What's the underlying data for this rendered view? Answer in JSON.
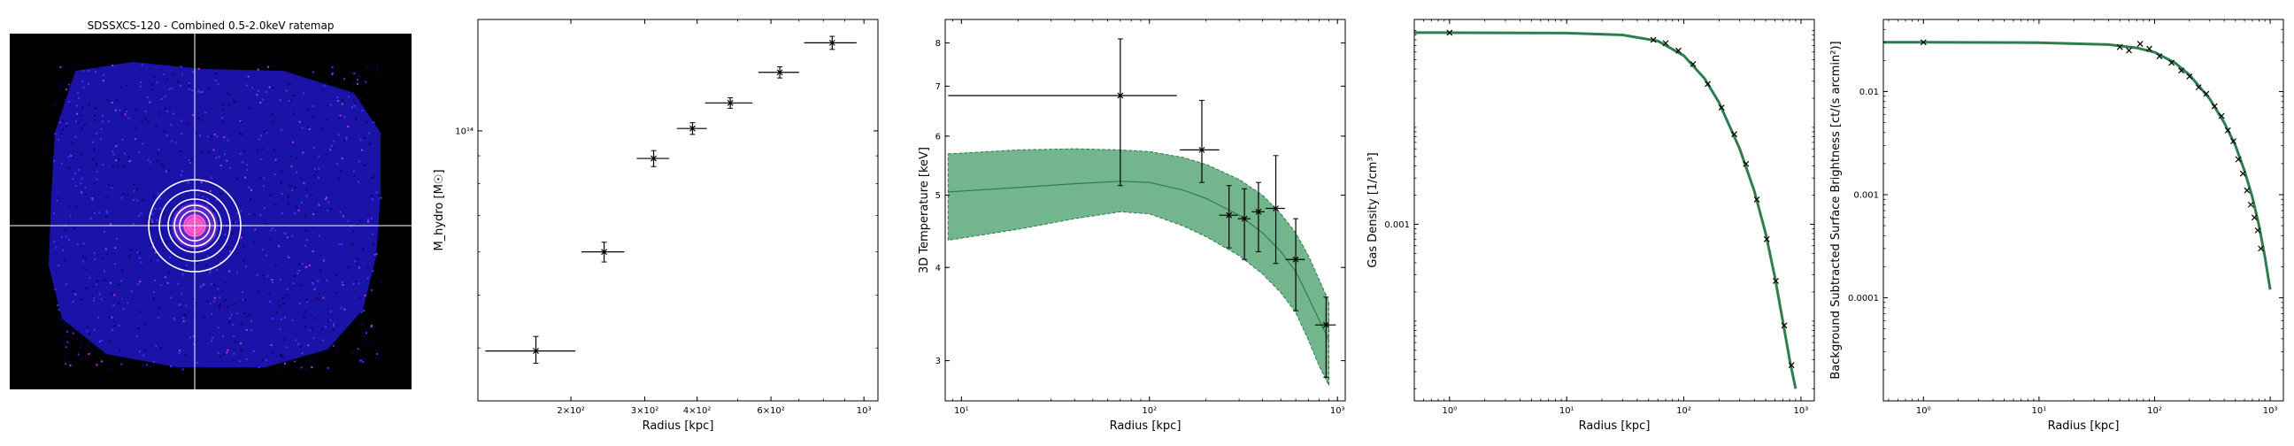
{
  "panels": {
    "image": {
      "title": "SDSSXCS-120 - Combined 0.5-2.0keV ratemap"
    }
  },
  "colors": {
    "fill": "#5aa878",
    "line": "#2e7d4f",
    "image_bg": "#000000",
    "source_blue": "#2a1fd6",
    "aperture": "#ffffff"
  },
  "chart_data": [
    {
      "type": "scatter",
      "name": "hydrostatic-mass-profile",
      "xlabel": "Radius [kpc]",
      "ylabel": "M_hydro [M☉]",
      "xscale": "log",
      "yscale": "log",
      "xlim": [
        120,
        1080
      ],
      "ylim": [
        32000000000000.0,
        160000000000000.0
      ],
      "x_ticks": [
        {
          "v": 200,
          "label": "2×10²"
        },
        {
          "v": 300,
          "label": "3×10²"
        },
        {
          "v": 400,
          "label": "4×10²"
        },
        {
          "v": 600,
          "label": "6×10²"
        },
        {
          "v": 1000,
          "label": "10³"
        }
      ],
      "y_ticks": [
        {
          "v": 100000000000000.0,
          "label": "10¹⁴"
        }
      ],
      "points": [
        {
          "x": 165,
          "y": 39500000000000.0,
          "xerr": [
            40,
            40
          ],
          "yerr": [
            2000000000000.0,
            2500000000000.0
          ]
        },
        {
          "x": 240,
          "y": 60000000000000.0,
          "xerr": [
            28,
            28
          ],
          "yerr": [
            2500000000000.0,
            2500000000000.0
          ]
        },
        {
          "x": 315,
          "y": 89000000000000.0,
          "xerr": [
            28,
            28
          ],
          "yerr": [
            3000000000000.0,
            3000000000000.0
          ]
        },
        {
          "x": 390,
          "y": 101000000000000.0,
          "xerr": [
            32,
            32
          ],
          "yerr": [
            2500000000000.0,
            2500000000000.0
          ]
        },
        {
          "x": 480,
          "y": 112500000000000.0,
          "xerr": [
            62,
            62
          ],
          "yerr": [
            2500000000000.0,
            2500000000000.0
          ]
        },
        {
          "x": 630,
          "y": 128000000000000.0,
          "xerr": [
            70,
            70
          ],
          "yerr": [
            3000000000000.0,
            3000000000000.0
          ]
        },
        {
          "x": 840,
          "y": 145000000000000.0,
          "xerr": [
            120,
            120
          ],
          "yerr": [
            4000000000000.0,
            4000000000000.0
          ]
        }
      ]
    },
    {
      "type": "scatter",
      "name": "3d-temperature-profile",
      "xlabel": "Radius [kpc]",
      "ylabel": "3D Temperature [keV]",
      "xscale": "log",
      "yscale": "log",
      "xlim": [
        8.2,
        1100
      ],
      "ylim": [
        2.65,
        8.6
      ],
      "x_ticks": [
        {
          "v": 10,
          "label": "10¹"
        },
        {
          "v": 100,
          "label": "10²"
        },
        {
          "v": 1000,
          "label": "10³"
        }
      ],
      "y_ticks": [
        {
          "v": 3,
          "label": "3"
        },
        {
          "v": 4,
          "label": "4"
        },
        {
          "v": 5,
          "label": "5"
        },
        {
          "v": 6,
          "label": "6"
        },
        {
          "v": 7,
          "label": "7"
        },
        {
          "v": 8,
          "label": "8"
        }
      ],
      "model": {
        "x": [
          8.5,
          20,
          40,
          70,
          100,
          150,
          200,
          300,
          400,
          500,
          600,
          700,
          800,
          900
        ],
        "y": [
          5.05,
          5.12,
          5.18,
          5.22,
          5.2,
          5.08,
          4.95,
          4.7,
          4.45,
          4.2,
          3.95,
          3.65,
          3.4,
          3.2
        ],
        "upper": [
          5.68,
          5.75,
          5.77,
          5.75,
          5.72,
          5.62,
          5.5,
          5.25,
          5.0,
          4.72,
          4.45,
          4.15,
          3.85,
          3.6
        ],
        "lower": [
          4.35,
          4.5,
          4.65,
          4.75,
          4.72,
          4.55,
          4.4,
          4.15,
          3.92,
          3.7,
          3.48,
          3.2,
          2.95,
          2.78
        ]
      },
      "points": [
        {
          "x": 70,
          "y": 6.8,
          "xerr": [
            61.5,
            70
          ],
          "yerr": [
            1.65,
            1.3
          ]
        },
        {
          "x": 190,
          "y": 5.75,
          "xerr": [
            45,
            45
          ],
          "yerr": [
            0.55,
            0.95
          ]
        },
        {
          "x": 265,
          "y": 4.7,
          "xerr": [
            30,
            30
          ],
          "yerr": [
            0.45,
            0.45
          ]
        },
        {
          "x": 320,
          "y": 4.65,
          "xerr": [
            25,
            25
          ],
          "yerr": [
            0.55,
            0.45
          ]
        },
        {
          "x": 380,
          "y": 4.75,
          "xerr": [
            30,
            30
          ],
          "yerr": [
            0.55,
            0.45
          ]
        },
        {
          "x": 470,
          "y": 4.8,
          "xerr": [
            55,
            55
          ],
          "yerr": [
            0.75,
            0.85
          ]
        },
        {
          "x": 600,
          "y": 4.1,
          "xerr": [
            70,
            70
          ],
          "yerr": [
            0.6,
            0.55
          ]
        },
        {
          "x": 870,
          "y": 3.35,
          "xerr": [
            110,
            110
          ],
          "yerr": [
            0.5,
            0.3
          ]
        }
      ]
    },
    {
      "type": "line",
      "name": "gas-density-profile",
      "xlabel": "Radius [kpc]",
      "ylabel": "Gas Density [1/cm³]",
      "xscale": "log",
      "yscale": "log",
      "xlim": [
        0.5,
        1300
      ],
      "ylim": [
        1.5e-05,
        0.13
      ],
      "x_ticks": [
        {
          "v": 1,
          "label": "10⁰"
        },
        {
          "v": 10,
          "label": "10¹"
        },
        {
          "v": 100,
          "label": "10²"
        },
        {
          "v": 1000,
          "label": "10³"
        }
      ],
      "y_ticks": [
        {
          "v": 0.001,
          "label": "0.001"
        }
      ],
      "model": {
        "x": [
          0.5,
          1,
          10,
          30,
          60,
          100,
          150,
          200,
          300,
          400,
          500,
          600,
          700,
          800,
          900
        ],
        "y": [
          0.095,
          0.095,
          0.094,
          0.09,
          0.078,
          0.055,
          0.032,
          0.018,
          0.006,
          0.0022,
          0.0008,
          0.00028,
          0.0001,
          4e-05,
          2e-05
        ]
      },
      "points": [
        {
          "x": 1,
          "y": 0.095
        },
        {
          "x": 55,
          "y": 0.08
        },
        {
          "x": 70,
          "y": 0.074
        },
        {
          "x": 90,
          "y": 0.062
        },
        {
          "x": 120,
          "y": 0.045
        },
        {
          "x": 160,
          "y": 0.028
        },
        {
          "x": 210,
          "y": 0.016
        },
        {
          "x": 270,
          "y": 0.0085
        },
        {
          "x": 340,
          "y": 0.0042
        },
        {
          "x": 420,
          "y": 0.0018
        },
        {
          "x": 510,
          "y": 0.0007
        },
        {
          "x": 610,
          "y": 0.00026
        },
        {
          "x": 720,
          "y": 9e-05
        },
        {
          "x": 830,
          "y": 3.5e-05
        }
      ]
    },
    {
      "type": "line",
      "name": "surface-brightness-profile",
      "xlabel": "Radius [kpc]",
      "ylabel": "Background Subtracted Surface Brightness [ct/(s arcmin²)]",
      "xscale": "log",
      "yscale": "log",
      "xlim": [
        0.45,
        1300
      ],
      "ylim": [
        1e-05,
        0.05
      ],
      "x_ticks": [
        {
          "v": 1,
          "label": "10⁰"
        },
        {
          "v": 10,
          "label": "10¹"
        },
        {
          "v": 100,
          "label": "10²"
        },
        {
          "v": 1000,
          "label": "10³"
        }
      ],
      "y_ticks": [
        {
          "v": 0.01,
          "label": "0.01"
        },
        {
          "v": 0.001,
          "label": "0.001"
        },
        {
          "v": 0.0001,
          "label": "0.0001"
        }
      ],
      "model": {
        "x": [
          0.45,
          1,
          10,
          40,
          70,
          100,
          150,
          200,
          300,
          400,
          500,
          600,
          700,
          800,
          900,
          1000
        ],
        "y": [
          0.03,
          0.03,
          0.0298,
          0.0285,
          0.0265,
          0.024,
          0.019,
          0.0145,
          0.0085,
          0.005,
          0.003,
          0.0017,
          0.00095,
          0.0005,
          0.00025,
          0.00012
        ]
      },
      "points": [
        {
          "x": 1,
          "y": 0.03
        },
        {
          "x": 50,
          "y": 0.027
        },
        {
          "x": 60,
          "y": 0.025
        },
        {
          "x": 75,
          "y": 0.029
        },
        {
          "x": 90,
          "y": 0.026
        },
        {
          "x": 110,
          "y": 0.022
        },
        {
          "x": 140,
          "y": 0.019
        },
        {
          "x": 170,
          "y": 0.016
        },
        {
          "x": 200,
          "y": 0.014
        },
        {
          "x": 240,
          "y": 0.011
        },
        {
          "x": 280,
          "y": 0.0095
        },
        {
          "x": 330,
          "y": 0.0072
        },
        {
          "x": 380,
          "y": 0.0058
        },
        {
          "x": 430,
          "y": 0.0042
        },
        {
          "x": 480,
          "y": 0.0033
        },
        {
          "x": 530,
          "y": 0.0022
        },
        {
          "x": 580,
          "y": 0.0016
        },
        {
          "x": 630,
          "y": 0.0011
        },
        {
          "x": 680,
          "y": 0.0008
        },
        {
          "x": 730,
          "y": 0.0006
        },
        {
          "x": 780,
          "y": 0.00045
        },
        {
          "x": 830,
          "y": 0.0003
        }
      ]
    }
  ]
}
